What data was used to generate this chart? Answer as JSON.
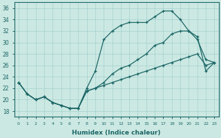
{
  "bg_color": "#cce8e2",
  "line_color": "#1a6666",
  "grid_color": "#99cccc",
  "xlabel": "Humidex (Indice chaleur)",
  "xlim": [
    -0.5,
    23.5
  ],
  "ylim": [
    17,
    37
  ],
  "yticks": [
    18,
    20,
    22,
    24,
    26,
    28,
    30,
    32,
    34,
    36
  ],
  "xticks": [
    0,
    1,
    2,
    3,
    4,
    5,
    6,
    7,
    8,
    9,
    10,
    11,
    12,
    13,
    14,
    15,
    16,
    17,
    18,
    19,
    20,
    21,
    22,
    23
  ],
  "curve1_x": [
    0,
    1,
    2,
    3,
    4,
    5,
    6,
    7,
    8,
    9,
    10,
    11,
    12,
    13,
    14,
    15,
    16,
    17,
    18,
    19,
    20,
    21,
    22,
    23
  ],
  "curve1_y": [
    23,
    21,
    20,
    20.5,
    19.5,
    19,
    18.5,
    18.5,
    22,
    25,
    30.5,
    32,
    33,
    33.5,
    33.5,
    33.5,
    34.5,
    35.5,
    35.5,
    34,
    32,
    30.5,
    27,
    26.5
  ],
  "curve2_x": [
    0,
    1,
    2,
    3,
    4,
    5,
    6,
    7,
    8,
    9,
    10,
    11,
    12,
    13,
    14,
    15,
    16,
    17,
    18,
    19,
    20,
    21,
    22,
    23
  ],
  "curve2_y": [
    23,
    21,
    20,
    20.5,
    19.5,
    19,
    18.5,
    18.5,
    21.5,
    22,
    23,
    24.5,
    25.5,
    26,
    27,
    28,
    29.5,
    30,
    31.5,
    32,
    32,
    31,
    25,
    26.5
  ],
  "curve3_x": [
    0,
    1,
    2,
    3,
    4,
    5,
    6,
    7,
    8,
    9,
    10,
    11,
    12,
    13,
    14,
    15,
    16,
    17,
    18,
    19,
    20,
    21,
    22,
    23
  ],
  "curve3_y": [
    23,
    21,
    20,
    20.5,
    19.5,
    19,
    18.5,
    18.5,
    21.5,
    22,
    22.5,
    23,
    23.5,
    24,
    24.5,
    25,
    25.5,
    26,
    26.5,
    27,
    27.5,
    28,
    26,
    26.5
  ]
}
